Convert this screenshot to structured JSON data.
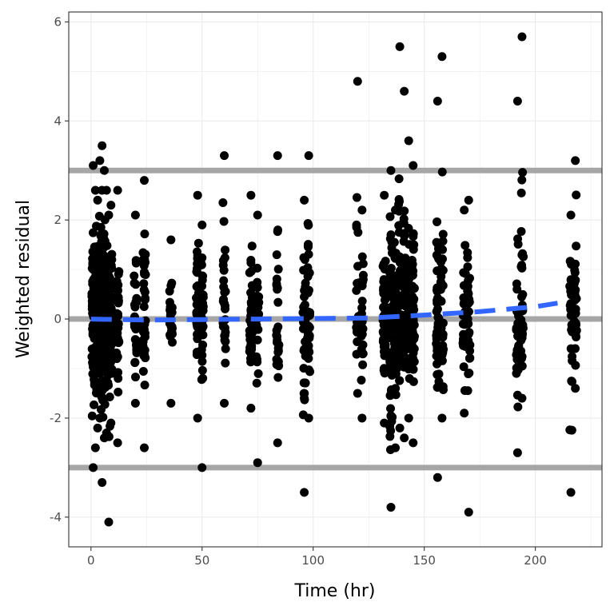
{
  "chart_data": {
    "type": "scatter",
    "title": "",
    "xlabel": "Time (hr)",
    "ylabel": "Weighted residual",
    "xlim": [
      -10,
      230
    ],
    "ylim": [
      -4.6,
      6.2
    ],
    "x_ticks": [
      0,
      50,
      100,
      150,
      200
    ],
    "y_ticks": [
      -4,
      -2,
      0,
      2,
      4,
      6
    ],
    "x_tick_labels": [
      "0",
      "50",
      "100",
      "150",
      "200"
    ],
    "y_tick_labels": [
      "-4",
      "-2",
      "0",
      "2",
      "4",
      "6"
    ],
    "grid": true,
    "legend": "none",
    "point_color": "#000000",
    "reference_lines": {
      "y": [
        -3,
        0,
        3
      ],
      "color": "#a6a6a6"
    },
    "trend_line": {
      "style": "dashed",
      "color": "#3366ff",
      "x": [
        0,
        25,
        50,
        75,
        100,
        125,
        150,
        175,
        200,
        210
      ],
      "y": [
        0.0,
        -0.02,
        -0.01,
        0.0,
        0.01,
        0.02,
        0.08,
        0.15,
        0.25,
        0.32
      ]
    },
    "columns": [
      {
        "x": 1,
        "min": -3.0,
        "max": 3.1,
        "count": 70
      },
      {
        "x": 2,
        "min": -2.6,
        "max": 2.6,
        "count": 60
      },
      {
        "x": 3,
        "min": -2.2,
        "max": 2.4,
        "count": 60
      },
      {
        "x": 4,
        "min": -2.0,
        "max": 3.2,
        "count": 55
      },
      {
        "x": 5,
        "min": -3.3,
        "max": 3.5,
        "count": 55
      },
      {
        "x": 6,
        "min": -2.4,
        "max": 3.0,
        "count": 50
      },
      {
        "x": 7,
        "min": -2.3,
        "max": 2.6,
        "count": 45
      },
      {
        "x": 8,
        "min": -4.1,
        "max": 2.1,
        "count": 45
      },
      {
        "x": 9,
        "min": -2.1,
        "max": 2.3,
        "count": 40
      },
      {
        "x": 12,
        "min": -2.5,
        "max": 2.6,
        "count": 40
      },
      {
        "x": 20,
        "min": -1.7,
        "max": 2.1,
        "count": 25
      },
      {
        "x": 24,
        "min": -2.6,
        "max": 2.8,
        "count": 35
      },
      {
        "x": 36,
        "min": -1.7,
        "max": 1.6,
        "count": 22
      },
      {
        "x": 48,
        "min": -2.0,
        "max": 2.5,
        "count": 30
      },
      {
        "x": 50,
        "min": -3.0,
        "max": 1.9,
        "count": 35
      },
      {
        "x": 60,
        "min": -1.7,
        "max": 3.3,
        "count": 28
      },
      {
        "x": 72,
        "min": -1.8,
        "max": 2.5,
        "count": 30
      },
      {
        "x": 75,
        "min": -2.9,
        "max": 2.1,
        "count": 25
      },
      {
        "x": 84,
        "min": -2.5,
        "max": 3.3,
        "count": 25
      },
      {
        "x": 96,
        "min": -3.5,
        "max": 2.4,
        "count": 30
      },
      {
        "x": 98,
        "min": -2.0,
        "max": 3.3,
        "count": 30
      },
      {
        "x": 120,
        "min": -1.5,
        "max": 4.8,
        "count": 22
      },
      {
        "x": 122,
        "min": -2.0,
        "max": 2.2,
        "count": 22
      },
      {
        "x": 132,
        "min": -2.1,
        "max": 2.5,
        "count": 60
      },
      {
        "x": 135,
        "min": -3.8,
        "max": 3.0,
        "count": 60
      },
      {
        "x": 137,
        "min": -2.6,
        "max": 2.2,
        "count": 55
      },
      {
        "x": 139,
        "min": -2.2,
        "max": 5.5,
        "count": 55
      },
      {
        "x": 141,
        "min": -2.4,
        "max": 4.6,
        "count": 50
      },
      {
        "x": 143,
        "min": -2.0,
        "max": 3.6,
        "count": 45
      },
      {
        "x": 145,
        "min": -2.5,
        "max": 3.1,
        "count": 40
      },
      {
        "x": 156,
        "min": -3.2,
        "max": 4.4,
        "count": 35
      },
      {
        "x": 158,
        "min": -2.0,
        "max": 5.3,
        "count": 30
      },
      {
        "x": 168,
        "min": -1.9,
        "max": 2.2,
        "count": 28
      },
      {
        "x": 170,
        "min": -3.9,
        "max": 2.4,
        "count": 28
      },
      {
        "x": 192,
        "min": -2.7,
        "max": 4.4,
        "count": 30
      },
      {
        "x": 194,
        "min": -1.6,
        "max": 5.7,
        "count": 30
      },
      {
        "x": 216,
        "min": -3.5,
        "max": 2.1,
        "count": 28
      },
      {
        "x": 218,
        "min": -1.4,
        "max": 3.2,
        "count": 28
      }
    ]
  }
}
